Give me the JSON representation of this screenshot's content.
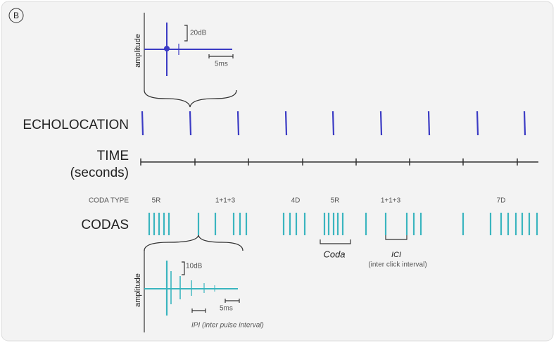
{
  "panel_label": "B",
  "echolocation": {
    "label": "ECHOLOCATION",
    "inset": {
      "y_label": "amplitude",
      "scale_amplitude": "20dB",
      "scale_time": "5ms"
    }
  },
  "time": {
    "label": "TIME",
    "unit": "(seconds)"
  },
  "codas": {
    "type_label": "CODA TYPE",
    "types": [
      "5R",
      "1+1+3",
      "4D",
      "5R",
      "1+1+3",
      "7D"
    ],
    "label": "CODAS",
    "coda_label": "Coda",
    "ici_label": "ICI",
    "ici_note": "(inter click interval)",
    "inset": {
      "y_label": "amplitude",
      "scale_amplitude": "10dB",
      "scale_time": "5ms",
      "ipi_label": "IPI (inter pulse interval)"
    }
  }
}
